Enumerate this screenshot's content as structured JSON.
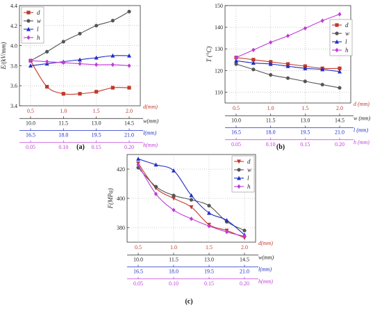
{
  "colors": {
    "d": "#c0392b",
    "w": "#555555",
    "l": "#1f2ec4",
    "h": "#c03cd6"
  },
  "scale_colors": {
    "d": "#c0392b",
    "w": "#222222",
    "l": "#1f2ec4",
    "h": "#c03cd6"
  },
  "chart_data": [
    {
      "type": "line",
      "panel_label": "(a)",
      "ylabel": "E/(kV/mm)",
      "ylim": [
        3.4,
        4.4
      ],
      "yticks": [
        "3.4",
        "3.6",
        "3.8",
        "4.0",
        "4.2",
        "4.4"
      ],
      "grid": true,
      "legend_position": "top-left",
      "x_positions": [
        0.5,
        0.75,
        1.0,
        1.25,
        1.5,
        1.75,
        2.0
      ],
      "series": [
        {
          "name": "d",
          "marker": "square",
          "values": [
            3.85,
            3.59,
            3.52,
            3.52,
            3.54,
            3.58,
            3.58
          ]
        },
        {
          "name": "w",
          "marker": "circle",
          "values": [
            3.85,
            3.94,
            4.04,
            4.12,
            4.2,
            4.25,
            4.34
          ]
        },
        {
          "name": "l",
          "marker": "triangle",
          "values": [
            3.8,
            3.82,
            3.84,
            3.86,
            3.88,
            3.9,
            3.9
          ]
        },
        {
          "name": "h",
          "marker": "diamond",
          "values": [
            3.85,
            3.84,
            3.83,
            3.82,
            3.81,
            3.81,
            3.8
          ]
        }
      ],
      "x_scales": [
        {
          "var": "d",
          "label": "d(mm)",
          "ticks": [
            "0.5",
            "1.0",
            "1.5",
            "2.0"
          ]
        },
        {
          "var": "w",
          "label": "w(mm)",
          "ticks": [
            "10.0",
            "11.5",
            "13.0",
            "14.5"
          ]
        },
        {
          "var": "l",
          "label": "l(mm)",
          "ticks": [
            "16.5",
            "18.0",
            "19.5",
            "21.0"
          ]
        },
        {
          "var": "h",
          "label": "h(mm)",
          "ticks": [
            "0.05",
            "0.10",
            "0.15",
            "0.20"
          ]
        }
      ]
    },
    {
      "type": "line",
      "panel_label": "(b)",
      "ylabel": "T (°C)",
      "ylim": [
        105,
        150
      ],
      "yticks": [
        "110",
        "120",
        "130",
        "140",
        "150"
      ],
      "grid": true,
      "legend_position": "right",
      "x_positions": [
        0.5,
        0.75,
        1.0,
        1.25,
        1.5,
        1.75,
        2.0
      ],
      "series": [
        {
          "name": "d",
          "marker": "square",
          "values": [
            126,
            125,
            124,
            123,
            122,
            121,
            121
          ]
        },
        {
          "name": "w",
          "marker": "circle",
          "values": [
            123,
            120.5,
            118,
            116.5,
            115,
            113.5,
            112
          ]
        },
        {
          "name": "l",
          "marker": "triangle",
          "values": [
            124.5,
            123.5,
            123,
            122,
            121,
            120.5,
            119.5
          ]
        },
        {
          "name": "h",
          "marker": "diamond",
          "values": [
            126,
            129.5,
            133,
            136,
            139.5,
            143,
            146
          ]
        }
      ],
      "x_scales": [
        {
          "var": "d",
          "label": "d (mm)",
          "ticks": [
            "0.5",
            "1.0",
            "1.5",
            "2.0"
          ]
        },
        {
          "var": "w",
          "label": "w (mm)",
          "ticks": [
            "10.0",
            "11.5",
            "13.0",
            "14.5"
          ]
        },
        {
          "var": "l",
          "label": "l (mm)",
          "ticks": [
            "16.5",
            "18.0",
            "19.5",
            "21.0"
          ]
        },
        {
          "var": "h",
          "label": "h (mm)",
          "ticks": [
            "0.05",
            "0.10",
            "0.15",
            "0.20"
          ]
        }
      ]
    },
    {
      "type": "line",
      "panel_label": "(c)",
      "ylabel": "F(MPa)",
      "ylim": [
        370,
        430
      ],
      "yticks": [
        "380",
        "400",
        "420"
      ],
      "grid": true,
      "legend_position": "top-right",
      "x_positions": [
        0.5,
        0.75,
        1.0,
        1.25,
        1.5,
        1.75,
        2.0
      ],
      "series": [
        {
          "name": "d",
          "marker": "triangle-down",
          "values": [
            424,
            407,
            400,
            394,
            382,
            378,
            373
          ]
        },
        {
          "name": "w",
          "marker": "circle",
          "values": [
            421,
            408,
            402,
            399,
            395,
            384,
            378
          ]
        },
        {
          "name": "l",
          "marker": "triangle",
          "values": [
            427,
            423,
            419,
            402,
            390,
            385,
            375
          ]
        },
        {
          "name": "h",
          "marker": "diamond",
          "values": [
            423,
            403,
            392,
            386,
            381,
            377,
            374
          ]
        }
      ],
      "x_scales": [
        {
          "var": "d",
          "label": "d(mm)",
          "ticks": [
            "0.5",
            "1.0",
            "1.5",
            "2.0"
          ]
        },
        {
          "var": "w",
          "label": "w(mm)",
          "ticks": [
            "10.0",
            "11.5",
            "13.0",
            "14.5"
          ]
        },
        {
          "var": "l",
          "label": "l(mm)",
          "ticks": [
            "16.5",
            "18.0",
            "19.5",
            "21.0"
          ]
        },
        {
          "var": "h",
          "label": "h(mm)",
          "ticks": [
            "0.05",
            "0.10",
            "0.15",
            "0.20"
          ]
        }
      ]
    }
  ]
}
